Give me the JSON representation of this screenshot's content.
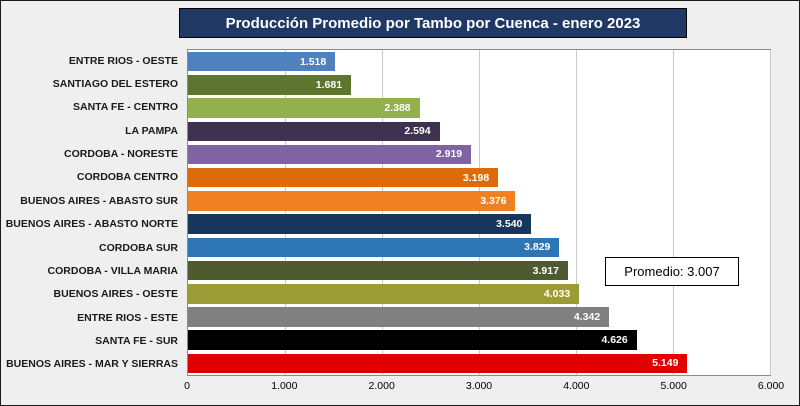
{
  "title": "Producción Promedio por Tambo por Cuenca - enero 2023",
  "annotation": {
    "label": "Promedio: 3.007"
  },
  "chart_data": {
    "type": "bar",
    "orientation": "horizontal",
    "title": "Producción Promedio por Tambo por Cuenca - enero 2023",
    "categories": [
      "ENTRE RIOS - OESTE",
      "SANTIAGO DEL ESTERO",
      "SANTA FE - CENTRO",
      "LA PAMPA",
      "CORDOBA - NORESTE",
      "CORDOBA CENTRO",
      "BUENOS AIRES - ABASTO SUR",
      "BUENOS AIRES - ABASTO NORTE",
      "CORDOBA SUR",
      "CORDOBA - VILLA MARIA",
      "BUENOS AIRES - OESTE",
      "ENTRE RIOS - ESTE",
      "SANTA FE - SUR",
      "BUENOS AIRES - MAR Y SIERRAS"
    ],
    "values": [
      1518,
      1681,
      2388,
      2594,
      2919,
      3198,
      3376,
      3540,
      3829,
      3917,
      4033,
      4342,
      4626,
      5149
    ],
    "value_labels": [
      "1.518",
      "1.681",
      "2.388",
      "2.594",
      "2.919",
      "3.198",
      "3.376",
      "3.540",
      "3.829",
      "3.917",
      "4.033",
      "4.342",
      "4.626",
      "5.149"
    ],
    "colors": [
      "#4E81BD",
      "#5E7530",
      "#92B04B",
      "#3F3151",
      "#8064A2",
      "#DD6B09",
      "#EF8122",
      "#17365D",
      "#2E75B6",
      "#4E5B2F",
      "#9C9C37",
      "#808080",
      "#000000",
      "#E00000"
    ],
    "xlim": [
      0,
      6000
    ],
    "x_ticks": [
      "0",
      "1.000",
      "2.000",
      "3.000",
      "4.000",
      "5.000",
      "6.000"
    ],
    "grid": true,
    "legend": "none",
    "annotation": "Promedio: 3.007",
    "title_bar_color": "#1F3864",
    "background_color": "#EFEFEF",
    "plot_background_color": "#FFFFFF"
  }
}
